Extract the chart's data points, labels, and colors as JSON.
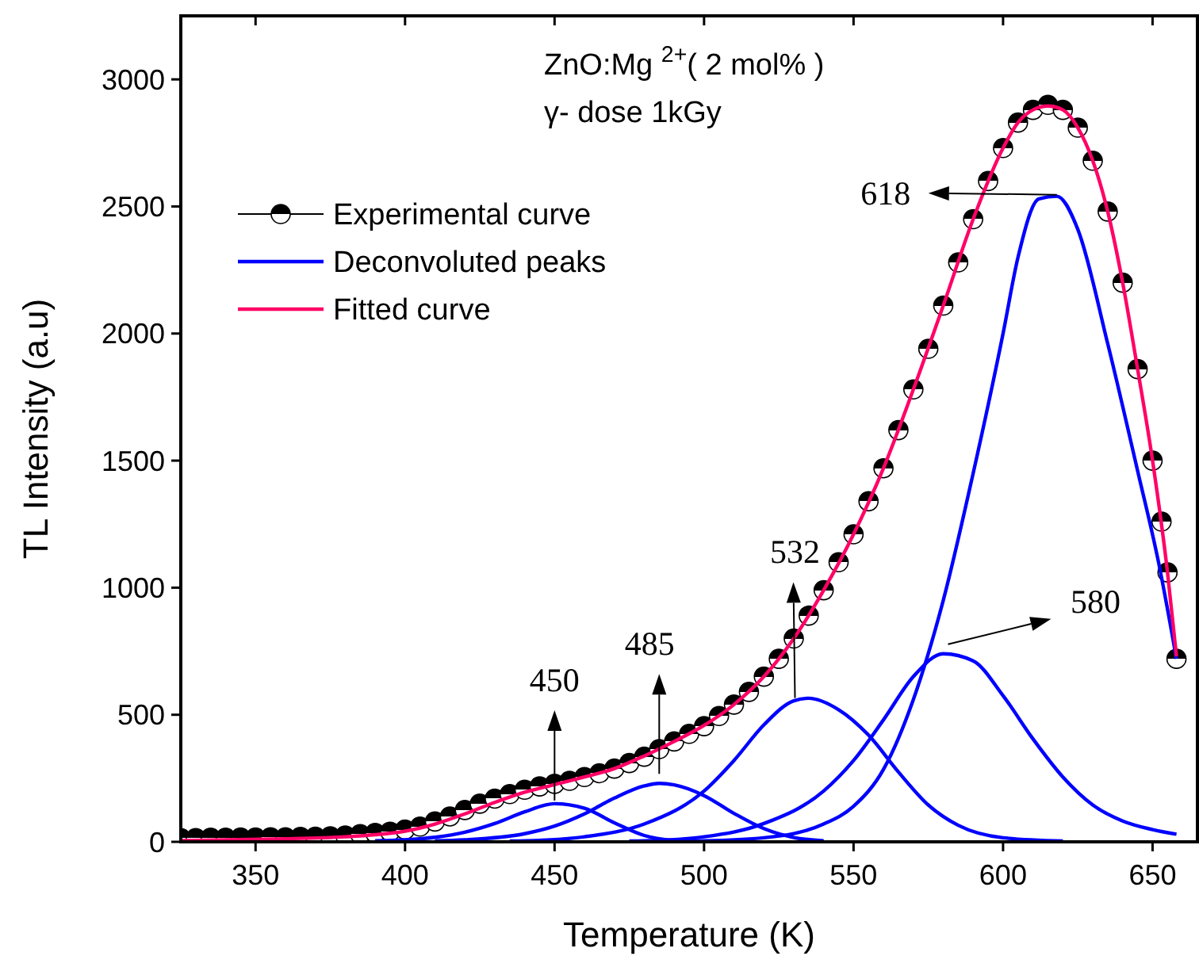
{
  "chart_data": {
    "type": "line",
    "xlabel": "Temperature (K)",
    "ylabel": "TL Intensity (a.u)",
    "xlim": [
      325,
      665
    ],
    "xticks": [
      350,
      400,
      450,
      500,
      550,
      600,
      650
    ],
    "ylim": [
      0,
      3250
    ],
    "yticks": [
      0,
      500,
      1000,
      1500,
      2000,
      2500,
      3000
    ],
    "grid": false,
    "legend": "top left",
    "annotations": [
      "ZnO:Mg $^{2+}$( 2 mol% )",
      "γ- dose 1kGy",
      {
        "text": "450",
        "x": 450,
        "y": 150
      },
      {
        "text": "485",
        "x": 485,
        "y": 230
      },
      {
        "text": "532",
        "x": 532,
        "y": 560
      },
      {
        "text": "580",
        "x": 580,
        "y": 740
      },
      "618"
    ],
    "series": [
      {
        "name": "Experimental curve",
        "type": "scatter",
        "color": "#000000",
        "marker": "circle",
        "x": [
          325,
          330,
          335,
          340,
          345,
          350,
          355,
          360,
          365,
          370,
          375,
          380,
          385,
          390,
          395,
          400,
          405,
          410,
          415,
          420,
          425,
          430,
          435,
          440,
          445,
          450,
          455,
          460,
          465,
          470,
          475,
          480,
          485,
          490,
          495,
          500,
          505,
          510,
          515,
          520,
          525,
          530,
          535,
          540,
          545,
          550,
          555,
          560,
          565,
          570,
          575,
          580,
          585,
          590,
          595,
          600,
          605,
          610,
          615,
          620,
          625,
          630,
          635,
          640,
          645,
          650,
          653,
          655,
          658
        ],
        "values": [
          15,
          15,
          16,
          16,
          17,
          17,
          18,
          18,
          19,
          20,
          22,
          25,
          30,
          35,
          40,
          48,
          60,
          80,
          100,
          125,
          150,
          170,
          188,
          205,
          218,
          228,
          240,
          255,
          270,
          288,
          310,
          335,
          365,
          395,
          425,
          455,
          495,
          540,
          590,
          650,
          720,
          800,
          890,
          990,
          1100,
          1210,
          1340,
          1470,
          1620,
          1780,
          1940,
          2110,
          2280,
          2450,
          2600,
          2730,
          2830,
          2880,
          2900,
          2880,
          2810,
          2680,
          2480,
          2200,
          1860,
          1500,
          1260,
          1060,
          720
        ]
      },
      {
        "name": "Deconvoluted peaks",
        "color": "#0000ff",
        "x": [
          390,
          400,
          410,
          420,
          430,
          440,
          450,
          460,
          470,
          480,
          490
        ],
        "values": [
          4,
          8,
          18,
          38,
          72,
          118,
          150,
          132,
          75,
          25,
          5
        ]
      },
      {
        "color": "#0000ff",
        "x": [
          410,
          420,
          440,
          450,
          460,
          470,
          480,
          485,
          490,
          500,
          510,
          520,
          530,
          540
        ],
        "values": [
          4,
          8,
          32,
          62,
          110,
          172,
          220,
          230,
          224,
          182,
          112,
          52,
          17,
          4
        ]
      },
      {
        "color": "#0000ff",
        "x": [
          435,
          440,
          460,
          480,
          500,
          510,
          520,
          530,
          535,
          545,
          555,
          565,
          575,
          585,
          600,
          620
        ],
        "values": [
          3,
          4,
          20,
          70,
          200,
          320,
          460,
          555,
          565,
          520,
          420,
          275,
          145,
          65,
          16,
          3
        ]
      },
      {
        "color": "#0000ff",
        "x": [
          475,
          480,
          500,
          520,
          540,
          550,
          560,
          570,
          580,
          590,
          600,
          610,
          620,
          630,
          640,
          650,
          658
        ],
        "values": [
          3,
          4,
          20,
          72,
          200,
          320,
          480,
          650,
          740,
          712,
          575,
          405,
          255,
          145,
          82,
          48,
          30
        ]
      },
      {
        "color": "#0000ff",
        "x": [
          495,
          500,
          520,
          540,
          550,
          560,
          570,
          580,
          590,
          600,
          605,
          612,
          618,
          625,
          635,
          645,
          652,
          658
        ],
        "values": [
          3,
          4,
          16,
          70,
          140,
          285,
          560,
          950,
          1450,
          2000,
          2300,
          2530,
          2540,
          2410,
          1960,
          1460,
          1100,
          720
        ]
      },
      {
        "name": "Fitted curve",
        "color": "#ff0066",
        "x": [
          325,
          340,
          360,
          380,
          390,
          400,
          410,
          420,
          430,
          440,
          450,
          460,
          470,
          480,
          490,
          500,
          510,
          520,
          530,
          540,
          550,
          560,
          570,
          580,
          590,
          600,
          605,
          610,
          615,
          620,
          625,
          630,
          635,
          640,
          645,
          650,
          655,
          658
        ],
        "values": [
          5,
          8,
          12,
          20,
          28,
          42,
          70,
          110,
          155,
          195,
          225,
          255,
          288,
          338,
          395,
          458,
          540,
          650,
          800,
          990,
          1210,
          1470,
          1780,
          2110,
          2450,
          2730,
          2830,
          2880,
          2895,
          2880,
          2810,
          2680,
          2480,
          2200,
          1860,
          1500,
          1060,
          730
        ]
      }
    ]
  }
}
